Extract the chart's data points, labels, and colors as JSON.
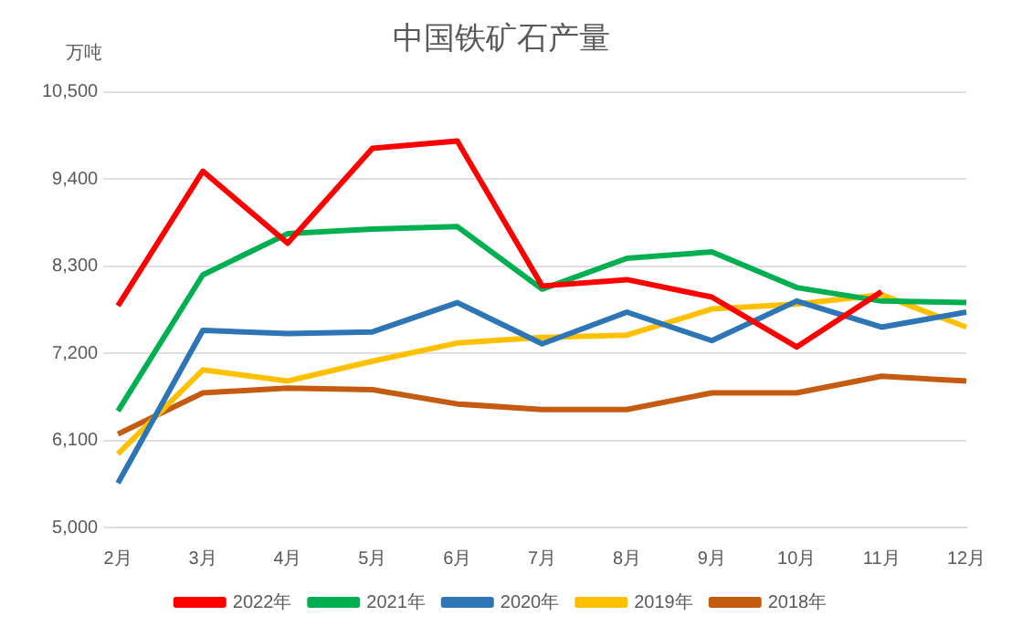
{
  "chart_data": {
    "type": "line",
    "title": "中国铁矿石产量",
    "ylabel": "万吨",
    "categories": [
      "2月",
      "3月",
      "4月",
      "5月",
      "6月",
      "7月",
      "8月",
      "9月",
      "10月",
      "11月",
      "12月"
    ],
    "series": [
      {
        "name": "2022年",
        "color": "#ff0000",
        "values": [
          7800,
          9500,
          8590,
          9790,
          9880,
          8050,
          8130,
          7910,
          7280,
          7980,
          null
        ]
      },
      {
        "name": "2021年",
        "color": "#00b050",
        "values": [
          6470,
          8190,
          8710,
          8770,
          8800,
          8010,
          8400,
          8480,
          8030,
          7860,
          7840
        ]
      },
      {
        "name": "2020年",
        "color": "#2e75b6",
        "values": [
          5560,
          7490,
          7450,
          7470,
          7840,
          7320,
          7720,
          7360,
          7860,
          7530,
          7720
        ]
      },
      {
        "name": "2019年",
        "color": "#ffc000",
        "values": [
          5930,
          6990,
          6850,
          7100,
          7330,
          7400,
          7430,
          7760,
          7820,
          7940,
          7530
        ]
      },
      {
        "name": "2018年",
        "color": "#c55a11",
        "values": [
          6180,
          6700,
          6760,
          6740,
          6560,
          6490,
          6490,
          6700,
          6700,
          6910,
          6850
        ]
      }
    ],
    "ylim": [
      5000,
      10500
    ],
    "yticks": [
      {
        "value": 5000,
        "label": "5,000"
      },
      {
        "value": 6100,
        "label": "6,100"
      },
      {
        "value": 7200,
        "label": "7,200"
      },
      {
        "value": 8300,
        "label": "8,300"
      },
      {
        "value": 9400,
        "label": "9,400"
      },
      {
        "value": 10500,
        "label": "10,500"
      }
    ],
    "grid": "y",
    "legend": "bottom",
    "marker": "none",
    "line_style": "solid"
  }
}
